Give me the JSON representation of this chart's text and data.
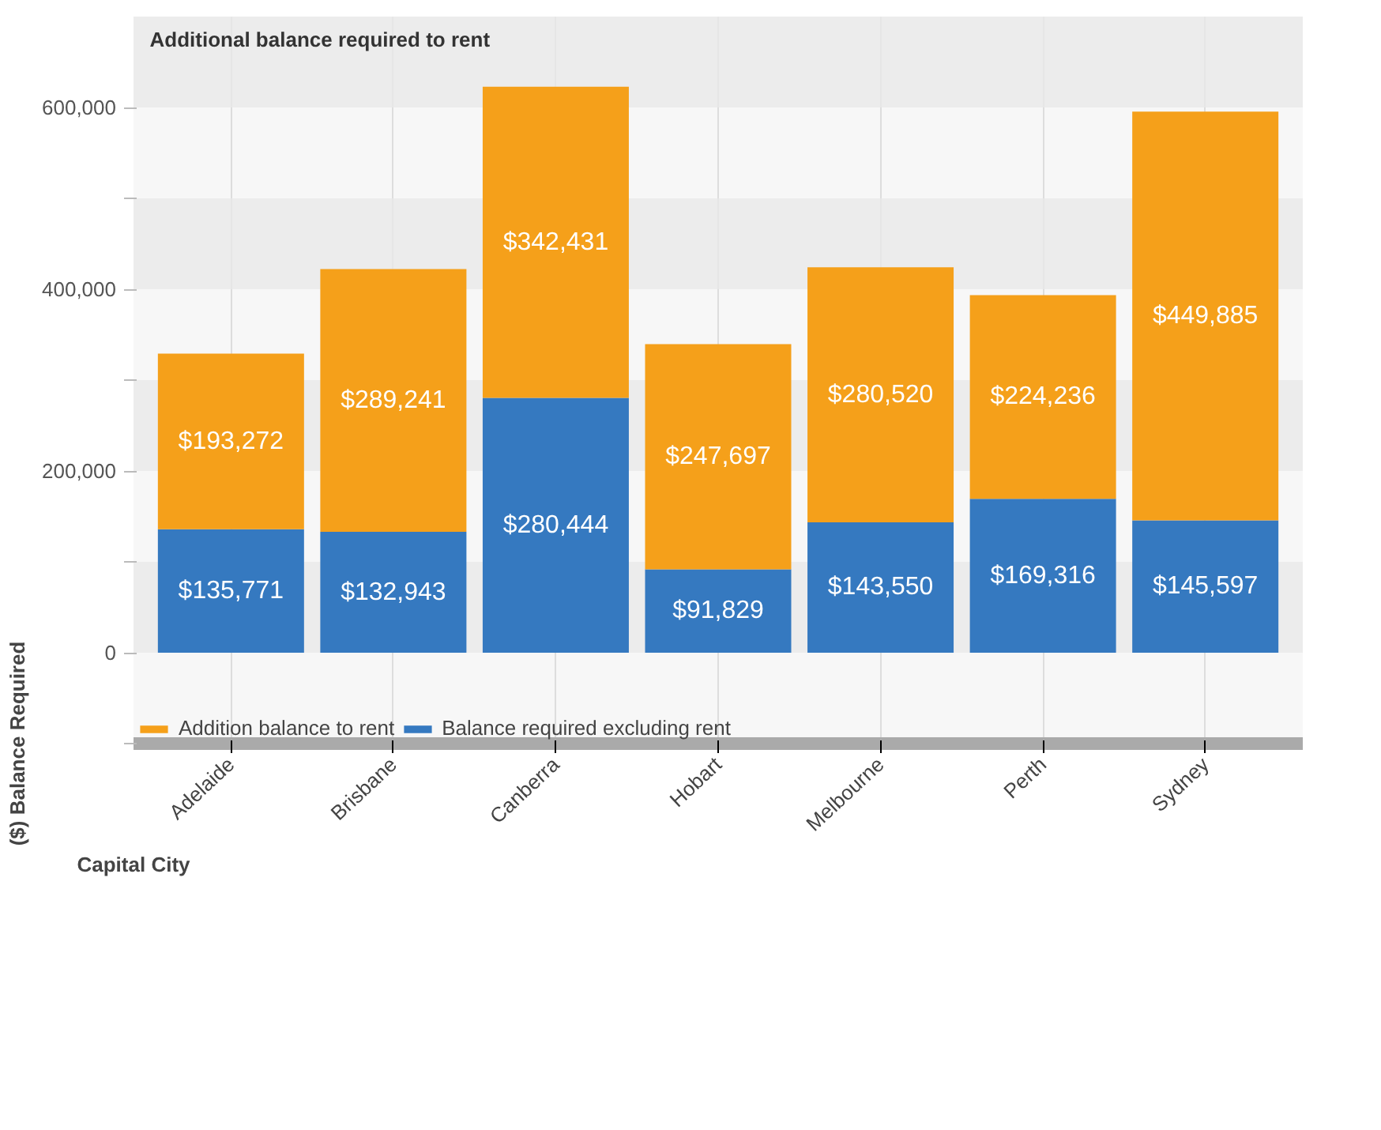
{
  "chart_data": {
    "type": "bar",
    "stacked": true,
    "title": "Additional balance required to rent",
    "ylabel": "($) Balance Required",
    "xlabel": "Capital City",
    "categories": [
      "Adelaide",
      "Brisbane",
      "Canberra",
      "Hobart",
      "Melbourne",
      "Perth",
      "Sydney"
    ],
    "series": [
      {
        "name": "Balance required excluding rent",
        "color": "#3579c0",
        "values": [
          135771,
          132943,
          280444,
          91829,
          143550,
          169316,
          145597
        ],
        "value_labels": [
          "$135,771",
          "$132,943",
          "$280,444",
          "$91,829",
          "$143,550",
          "$169,316",
          "$145,597"
        ]
      },
      {
        "name": "Addition balance to rent",
        "color": "#f5a01a",
        "values": [
          193272,
          289241,
          342431,
          247697,
          280520,
          224236,
          449885
        ],
        "value_labels": [
          "$193,272",
          "$289,241",
          "$342,431",
          "$247,697",
          "$280,520",
          "$224,236",
          "$449,885"
        ]
      }
    ],
    "ylim": [
      -100000,
      700000
    ],
    "yticks": [
      {
        "value": -100000,
        "label": null
      },
      0,
      {
        "value": 100000,
        "label": null
      },
      {
        "value": 200000,
        "label": "200,000"
      },
      {
        "value": 300000,
        "label": null
      },
      {
        "value": 400000,
        "label": "400,000"
      },
      {
        "value": 500000,
        "label": null
      },
      {
        "value": 600000,
        "label": "600,000"
      }
    ],
    "grid": true,
    "legend": "bottom"
  }
}
